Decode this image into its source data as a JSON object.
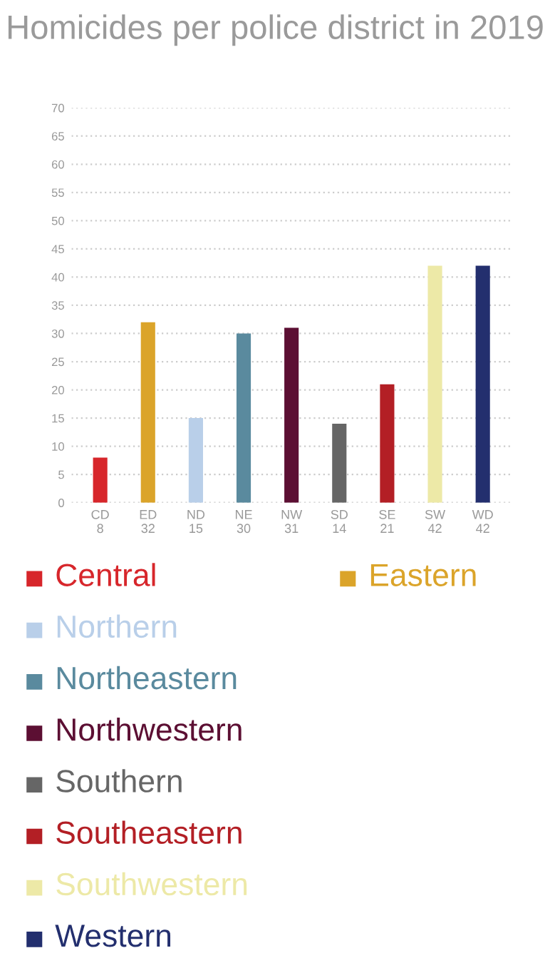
{
  "chart_data": {
    "type": "bar",
    "title": "Homicides per police district in 2019",
    "categories": [
      "CD",
      "ED",
      "ND",
      "NE",
      "NW",
      "SD",
      "SE",
      "SW",
      "WD"
    ],
    "series": [
      {
        "name": "Central",
        "color": "#d7262b",
        "values": [
          8,
          null,
          null,
          null,
          null,
          null,
          null,
          null,
          null
        ]
      },
      {
        "name": "Eastern",
        "color": "#dba42a",
        "values": [
          null,
          32,
          null,
          null,
          null,
          null,
          null,
          null,
          null
        ]
      },
      {
        "name": "Northern",
        "color": "#b9cfe9",
        "values": [
          null,
          null,
          15,
          null,
          null,
          null,
          null,
          null,
          null
        ]
      },
      {
        "name": "Northeastern",
        "color": "#5a8a9e",
        "values": [
          null,
          null,
          null,
          30,
          null,
          null,
          null,
          null,
          null
        ]
      },
      {
        "name": "Northwestern",
        "color": "#5c0f33",
        "values": [
          null,
          null,
          null,
          null,
          31,
          null,
          null,
          null,
          null
        ]
      },
      {
        "name": "Southern",
        "color": "#666666",
        "values": [
          null,
          null,
          null,
          null,
          null,
          14,
          null,
          null,
          null
        ]
      },
      {
        "name": "Southeastern",
        "color": "#b31f25",
        "values": [
          null,
          null,
          null,
          null,
          null,
          null,
          21,
          null,
          null
        ]
      },
      {
        "name": "Southwestern",
        "color": "#ede9a7",
        "values": [
          null,
          null,
          null,
          null,
          null,
          null,
          null,
          42,
          null
        ]
      },
      {
        "name": "Western",
        "color": "#232f6e",
        "values": [
          null,
          null,
          null,
          null,
          null,
          null,
          null,
          null,
          42
        ]
      }
    ],
    "ylim": [
      0,
      70
    ],
    "yticks": [
      0,
      5,
      10,
      15,
      20,
      25,
      30,
      35,
      40,
      45,
      50,
      55,
      60,
      65,
      70
    ],
    "grid": "y",
    "data_labels": true,
    "legend": "bottom"
  }
}
